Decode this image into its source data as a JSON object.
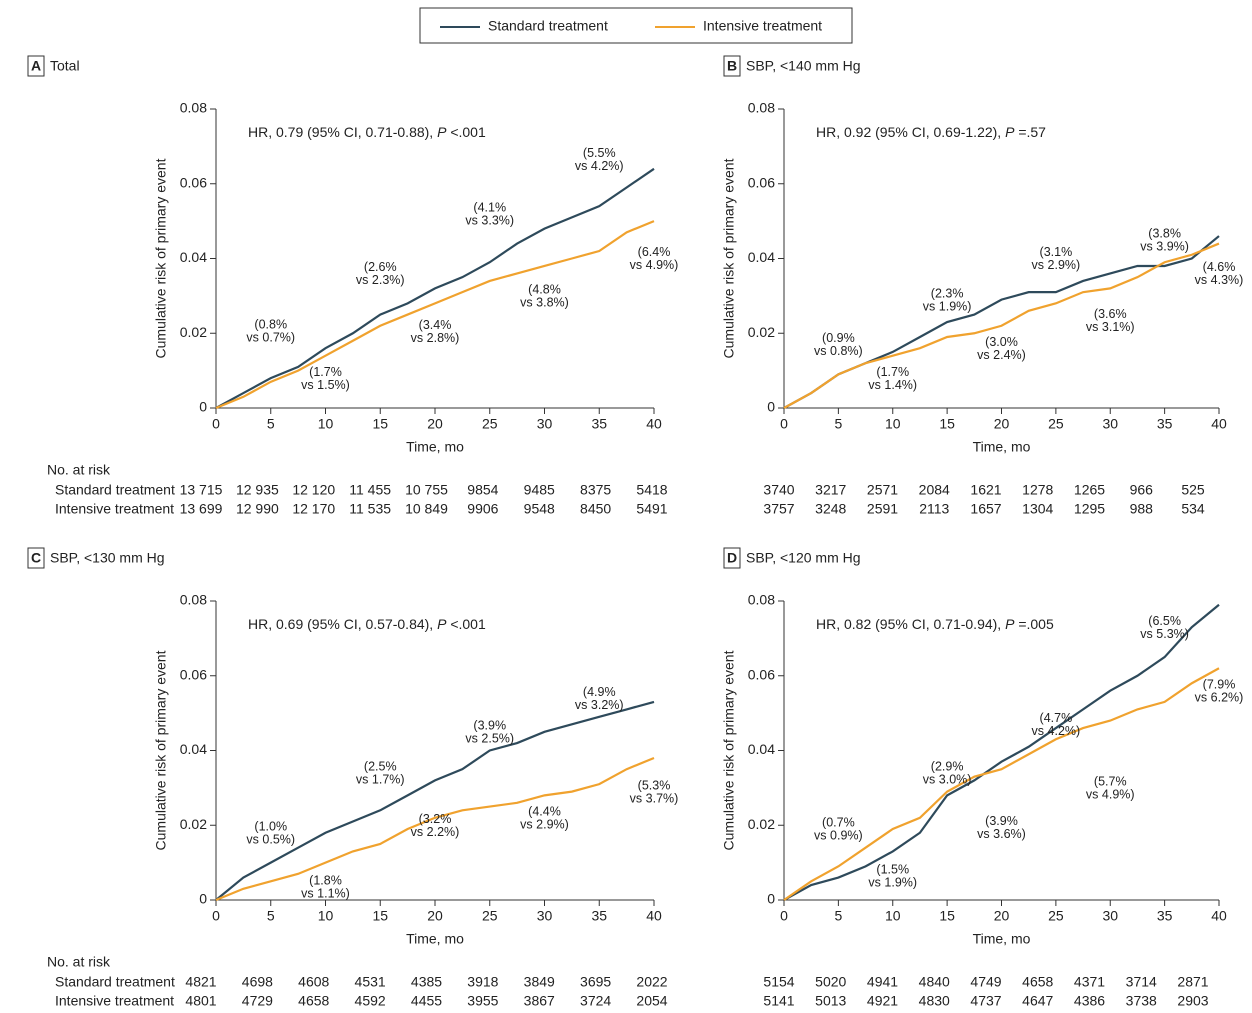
{
  "chart_data": [
    {
      "type": "line",
      "panel": "A",
      "title": "Total",
      "hr": [
        "HR, 0.79 (95% CI, 0.71-0.88), ",
        "P",
        " <.001"
      ],
      "xlabel": "Time, mo",
      "ylabel": "Cumulative risk of primary event",
      "xlim": [
        0,
        40
      ],
      "ylim": [
        0,
        0.08
      ],
      "xticks": [
        0,
        5,
        10,
        15,
        20,
        25,
        30,
        35,
        40
      ],
      "yticks": [
        0,
        0.02,
        0.04,
        0.06,
        0.08
      ],
      "x": [
        0,
        2.5,
        5,
        7.5,
        10,
        12.5,
        15,
        17.5,
        20,
        22.5,
        25,
        27.5,
        30,
        32.5,
        35,
        37.5,
        40
      ],
      "series": [
        {
          "name": "Standard treatment",
          "color": "#2e4a5b",
          "values": [
            0,
            0.004,
            0.008,
            0.011,
            0.016,
            0.02,
            0.025,
            0.028,
            0.032,
            0.035,
            0.039,
            0.044,
            0.048,
            0.051,
            0.054,
            0.059,
            0.064
          ],
          "at_risk": [
            {
              "value": 13715,
              "label": "13 715"
            },
            {
              "value": 12935,
              "label": "12 935"
            },
            {
              "value": 12120,
              "label": "12 120"
            },
            {
              "value": 11455,
              "label": "11 455"
            },
            {
              "value": 10755,
              "label": "10 755"
            },
            9854,
            9485,
            8375,
            5418
          ]
        },
        {
          "name": "Intensive treatment",
          "color": "#f0a22e",
          "values": [
            0,
            0.003,
            0.007,
            0.01,
            0.014,
            0.018,
            0.022,
            0.025,
            0.028,
            0.031,
            0.034,
            0.036,
            0.038,
            0.04,
            0.042,
            0.047,
            0.05
          ],
          "at_risk": [
            {
              "value": 13699,
              "label": "13 699"
            },
            {
              "value": 12990,
              "label": "12 990"
            },
            {
              "value": 12170,
              "label": "12 170"
            },
            {
              "value": 11535,
              "label": "11 535"
            },
            {
              "value": 10849,
              "label": "10 849"
            },
            9906,
            9548,
            8450,
            5491
          ]
        }
      ],
      "annotations": [
        [
          "(0.8%",
          "vs 0.7%)"
        ],
        [
          "(1.7%",
          "vs 1.5%)"
        ],
        [
          "(2.6%",
          "vs 2.3%)"
        ],
        [
          "(3.4%",
          "vs 2.8%)"
        ],
        [
          "(4.1%",
          "vs 3.3%)"
        ],
        [
          "(4.8%",
          "vs 3.8%)"
        ],
        [
          "(5.5%",
          "vs 4.2%)"
        ],
        [
          "(6.4%",
          "vs 4.9%)"
        ]
      ],
      "risk_title": "No. at risk"
    },
    {
      "type": "line",
      "panel": "B",
      "title": "SBP, <140 mm Hg",
      "hr": [
        "HR, 0.92 (95% CI, 0.69-1.22), ",
        "P",
        " =.57"
      ],
      "xlabel": "Time, mo",
      "ylabel": "Cumulative risk of primary event",
      "xlim": [
        0,
        40
      ],
      "ylim": [
        0,
        0.08
      ],
      "xticks": [
        0,
        5,
        10,
        15,
        20,
        25,
        30,
        35,
        40
      ],
      "yticks": [
        0,
        0.02,
        0.04,
        0.06,
        0.08
      ],
      "x": [
        0,
        2.5,
        5,
        7.5,
        10,
        12.5,
        15,
        17.5,
        20,
        22.5,
        25,
        27.5,
        30,
        32.5,
        35,
        37.5,
        40
      ],
      "series": [
        {
          "name": "Standard treatment",
          "color": "#2e4a5b",
          "values": [
            0,
            0.004,
            0.009,
            0.012,
            0.015,
            0.019,
            0.023,
            0.025,
            0.029,
            0.031,
            0.031,
            0.034,
            0.036,
            0.038,
            0.038,
            0.04,
            0.046
          ],
          "at_risk": [
            3740,
            3217,
            2571,
            2084,
            1621,
            1278,
            1265,
            966,
            525
          ]
        },
        {
          "name": "Intensive treatment",
          "color": "#f0a22e",
          "values": [
            0,
            0.004,
            0.009,
            0.012,
            0.014,
            0.016,
            0.019,
            0.02,
            0.022,
            0.026,
            0.028,
            0.031,
            0.032,
            0.035,
            0.039,
            0.041,
            0.044
          ],
          "at_risk": [
            3757,
            3248,
            2591,
            2113,
            1657,
            1304,
            1295,
            988,
            534
          ]
        }
      ],
      "annotations": [
        [
          "(0.9%",
          "vs 0.8%)"
        ],
        [
          "(1.7%",
          "vs 1.4%)"
        ],
        [
          "(2.3%",
          "vs 1.9%)"
        ],
        [
          "(3.0%",
          "vs 2.4%)"
        ],
        [
          "(3.1%",
          "vs 2.9%)"
        ],
        [
          "(3.6%",
          "vs 3.1%)"
        ],
        [
          "(3.8%",
          "vs 3.9%)"
        ],
        [
          "(4.6%",
          "vs 4.3%)"
        ]
      ]
    },
    {
      "type": "line",
      "panel": "C",
      "title": "SBP, <130 mm Hg",
      "hr": [
        "HR, 0.69 (95% CI, 0.57-0.84), ",
        "P",
        " <.001"
      ],
      "xlabel": "Time, mo",
      "ylabel": "Cumulative risk of primary event",
      "xlim": [
        0,
        40
      ],
      "ylim": [
        0,
        0.08
      ],
      "xticks": [
        0,
        5,
        10,
        15,
        20,
        25,
        30,
        35,
        40
      ],
      "yticks": [
        0,
        0.02,
        0.04,
        0.06,
        0.08
      ],
      "x": [
        0,
        2.5,
        5,
        7.5,
        10,
        12.5,
        15,
        17.5,
        20,
        22.5,
        25,
        27.5,
        30,
        32.5,
        35,
        37.5,
        40
      ],
      "series": [
        {
          "name": "Standard treatment",
          "color": "#2e4a5b",
          "values": [
            0,
            0.006,
            0.01,
            0.014,
            0.018,
            0.021,
            0.024,
            0.028,
            0.032,
            0.035,
            0.04,
            0.042,
            0.045,
            0.047,
            0.049,
            0.051,
            0.053
          ],
          "at_risk": [
            4821,
            4698,
            4608,
            4531,
            4385,
            3918,
            3849,
            3695,
            2022
          ]
        },
        {
          "name": "Intensive treatment",
          "color": "#f0a22e",
          "values": [
            0,
            0.003,
            0.005,
            0.007,
            0.01,
            0.013,
            0.015,
            0.019,
            0.022,
            0.024,
            0.025,
            0.026,
            0.028,
            0.029,
            0.031,
            0.035,
            0.038
          ],
          "at_risk": [
            4801,
            4729,
            4658,
            4592,
            4455,
            3955,
            3867,
            3724,
            2054
          ]
        }
      ],
      "annotations": [
        [
          "(1.0%",
          "vs 0.5%)"
        ],
        [
          "(1.8%",
          "vs 1.1%)"
        ],
        [
          "(2.5%",
          "vs 1.7%)"
        ],
        [
          "(3.2%",
          "vs 2.2%)"
        ],
        [
          "(3.9%",
          "vs 2.5%)"
        ],
        [
          "(4.4%",
          "vs 2.9%)"
        ],
        [
          "(4.9%",
          "vs 3.2%)"
        ],
        [
          "(5.3%",
          "vs 3.7%)"
        ]
      ],
      "risk_title": "No. at risk"
    },
    {
      "type": "line",
      "panel": "D",
      "title": "SBP, <120 mm Hg",
      "hr": [
        "HR, 0.82 (95% CI, 0.71-0.94), ",
        "P",
        " =.005"
      ],
      "xlabel": "Time, mo",
      "ylabel": "Cumulative risk of primary event",
      "xlim": [
        0,
        40
      ],
      "ylim": [
        0,
        0.08
      ],
      "xticks": [
        0,
        5,
        10,
        15,
        20,
        25,
        30,
        35,
        40
      ],
      "yticks": [
        0,
        0.02,
        0.04,
        0.06,
        0.08
      ],
      "x": [
        0,
        2.5,
        5,
        7.5,
        10,
        12.5,
        15,
        17.5,
        20,
        22.5,
        25,
        27.5,
        30,
        32.5,
        35,
        37.5,
        40
      ],
      "series": [
        {
          "name": "Standard treatment",
          "color": "#2e4a5b",
          "values": [
            0,
            0.004,
            0.006,
            0.009,
            0.013,
            0.018,
            0.028,
            0.032,
            0.037,
            0.041,
            0.046,
            0.051,
            0.056,
            0.06,
            0.065,
            0.073,
            0.079
          ],
          "at_risk": [
            5154,
            5020,
            4941,
            4840,
            4749,
            4658,
            4371,
            3714,
            2871
          ]
        },
        {
          "name": "Intensive treatment",
          "color": "#f0a22e",
          "values": [
            0,
            0.005,
            0.009,
            0.014,
            0.019,
            0.022,
            0.029,
            0.033,
            0.035,
            0.039,
            0.043,
            0.046,
            0.048,
            0.051,
            0.053,
            0.058,
            0.062
          ],
          "at_risk": [
            5141,
            5013,
            4921,
            4830,
            4737,
            4647,
            4386,
            3738,
            2903
          ]
        }
      ],
      "annotations": [
        [
          "(0.7%",
          "vs 0.9%)"
        ],
        [
          "(1.5%",
          "vs 1.9%)"
        ],
        [
          "(2.9%",
          "vs 3.0%)"
        ],
        [
          "(3.9%",
          "vs 3.6%)"
        ],
        [
          "(4.7%",
          "vs 4.2%)"
        ],
        [
          "(5.7%",
          "vs 4.9%)"
        ],
        [
          "(6.5%",
          "vs 5.3%)"
        ],
        [
          "(7.9%",
          "vs 6.2%)"
        ]
      ]
    }
  ]
}
